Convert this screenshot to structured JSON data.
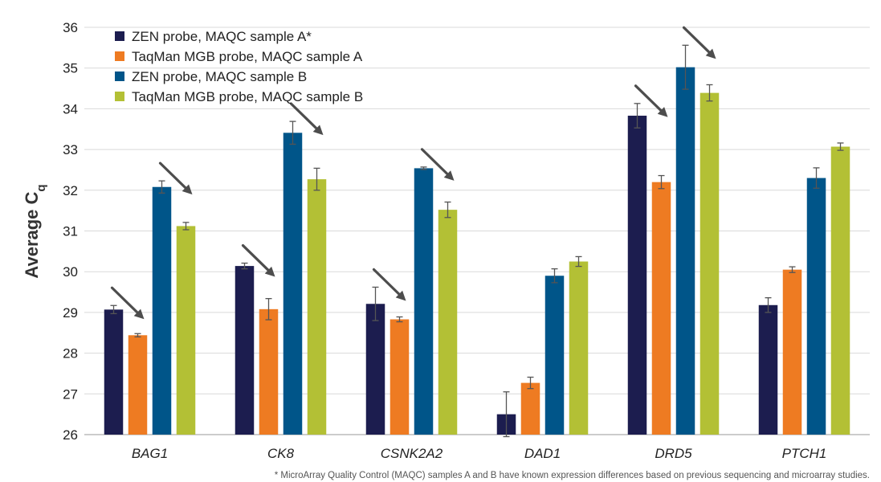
{
  "chart_data": {
    "type": "bar",
    "categories": [
      "BAG1",
      "CK8",
      "CSNK2A2",
      "DAD1",
      "DRD5",
      "PTCH1"
    ],
    "ylabel": "Average C",
    "ylabel_subscript": "q",
    "ylim": [
      26,
      36
    ],
    "yticks": [
      26,
      27,
      28,
      29,
      30,
      31,
      32,
      33,
      34,
      35,
      36
    ],
    "grid": true,
    "legend_position": "top-left",
    "series": [
      {
        "name": "ZEN probe, MAQC sample A*",
        "color": "#1c1d4f",
        "values": [
          29.07,
          30.14,
          29.21,
          26.5,
          33.83,
          29.18
        ],
        "errors": [
          0.1,
          0.07,
          0.41,
          0.55,
          0.3,
          0.18
        ]
      },
      {
        "name": "TaqMan MGB probe, MAQC sample A",
        "color": "#ee7b22",
        "values": [
          28.44,
          29.08,
          28.83,
          27.27,
          32.2,
          30.05
        ],
        "errors": [
          0.04,
          0.26,
          0.06,
          0.14,
          0.16,
          0.07
        ]
      },
      {
        "name": "ZEN probe, MAQC sample B",
        "color": "#005589",
        "values": [
          32.08,
          33.41,
          32.54,
          29.9,
          35.02,
          32.3
        ],
        "errors": [
          0.15,
          0.28,
          0.03,
          0.17,
          0.54,
          0.25
        ]
      },
      {
        "name": "TaqMan MGB probe, MAQC sample B",
        "color": "#b3c035",
        "values": [
          31.12,
          32.27,
          31.52,
          30.25,
          34.39,
          33.07
        ],
        "errors": [
          0.09,
          0.27,
          0.19,
          0.12,
          0.2,
          0.09
        ]
      }
    ],
    "annotations": [
      {
        "type": "arrow",
        "category": "BAG1",
        "series": 0
      },
      {
        "type": "arrow",
        "category": "BAG1",
        "series": 2
      },
      {
        "type": "arrow",
        "category": "CK8",
        "series": 0
      },
      {
        "type": "arrow",
        "category": "CK8",
        "series": 2
      },
      {
        "type": "arrow",
        "category": "CSNK2A2",
        "series": 0
      },
      {
        "type": "arrow",
        "category": "CSNK2A2",
        "series": 2
      },
      {
        "type": "arrow",
        "category": "DRD5",
        "series": 0
      },
      {
        "type": "arrow",
        "category": "DRD5",
        "series": 2
      }
    ],
    "footnote": "* MicroArray Quality Control (MAQC) samples A and B have known expression differences based on previous sequencing and microarray studies."
  }
}
